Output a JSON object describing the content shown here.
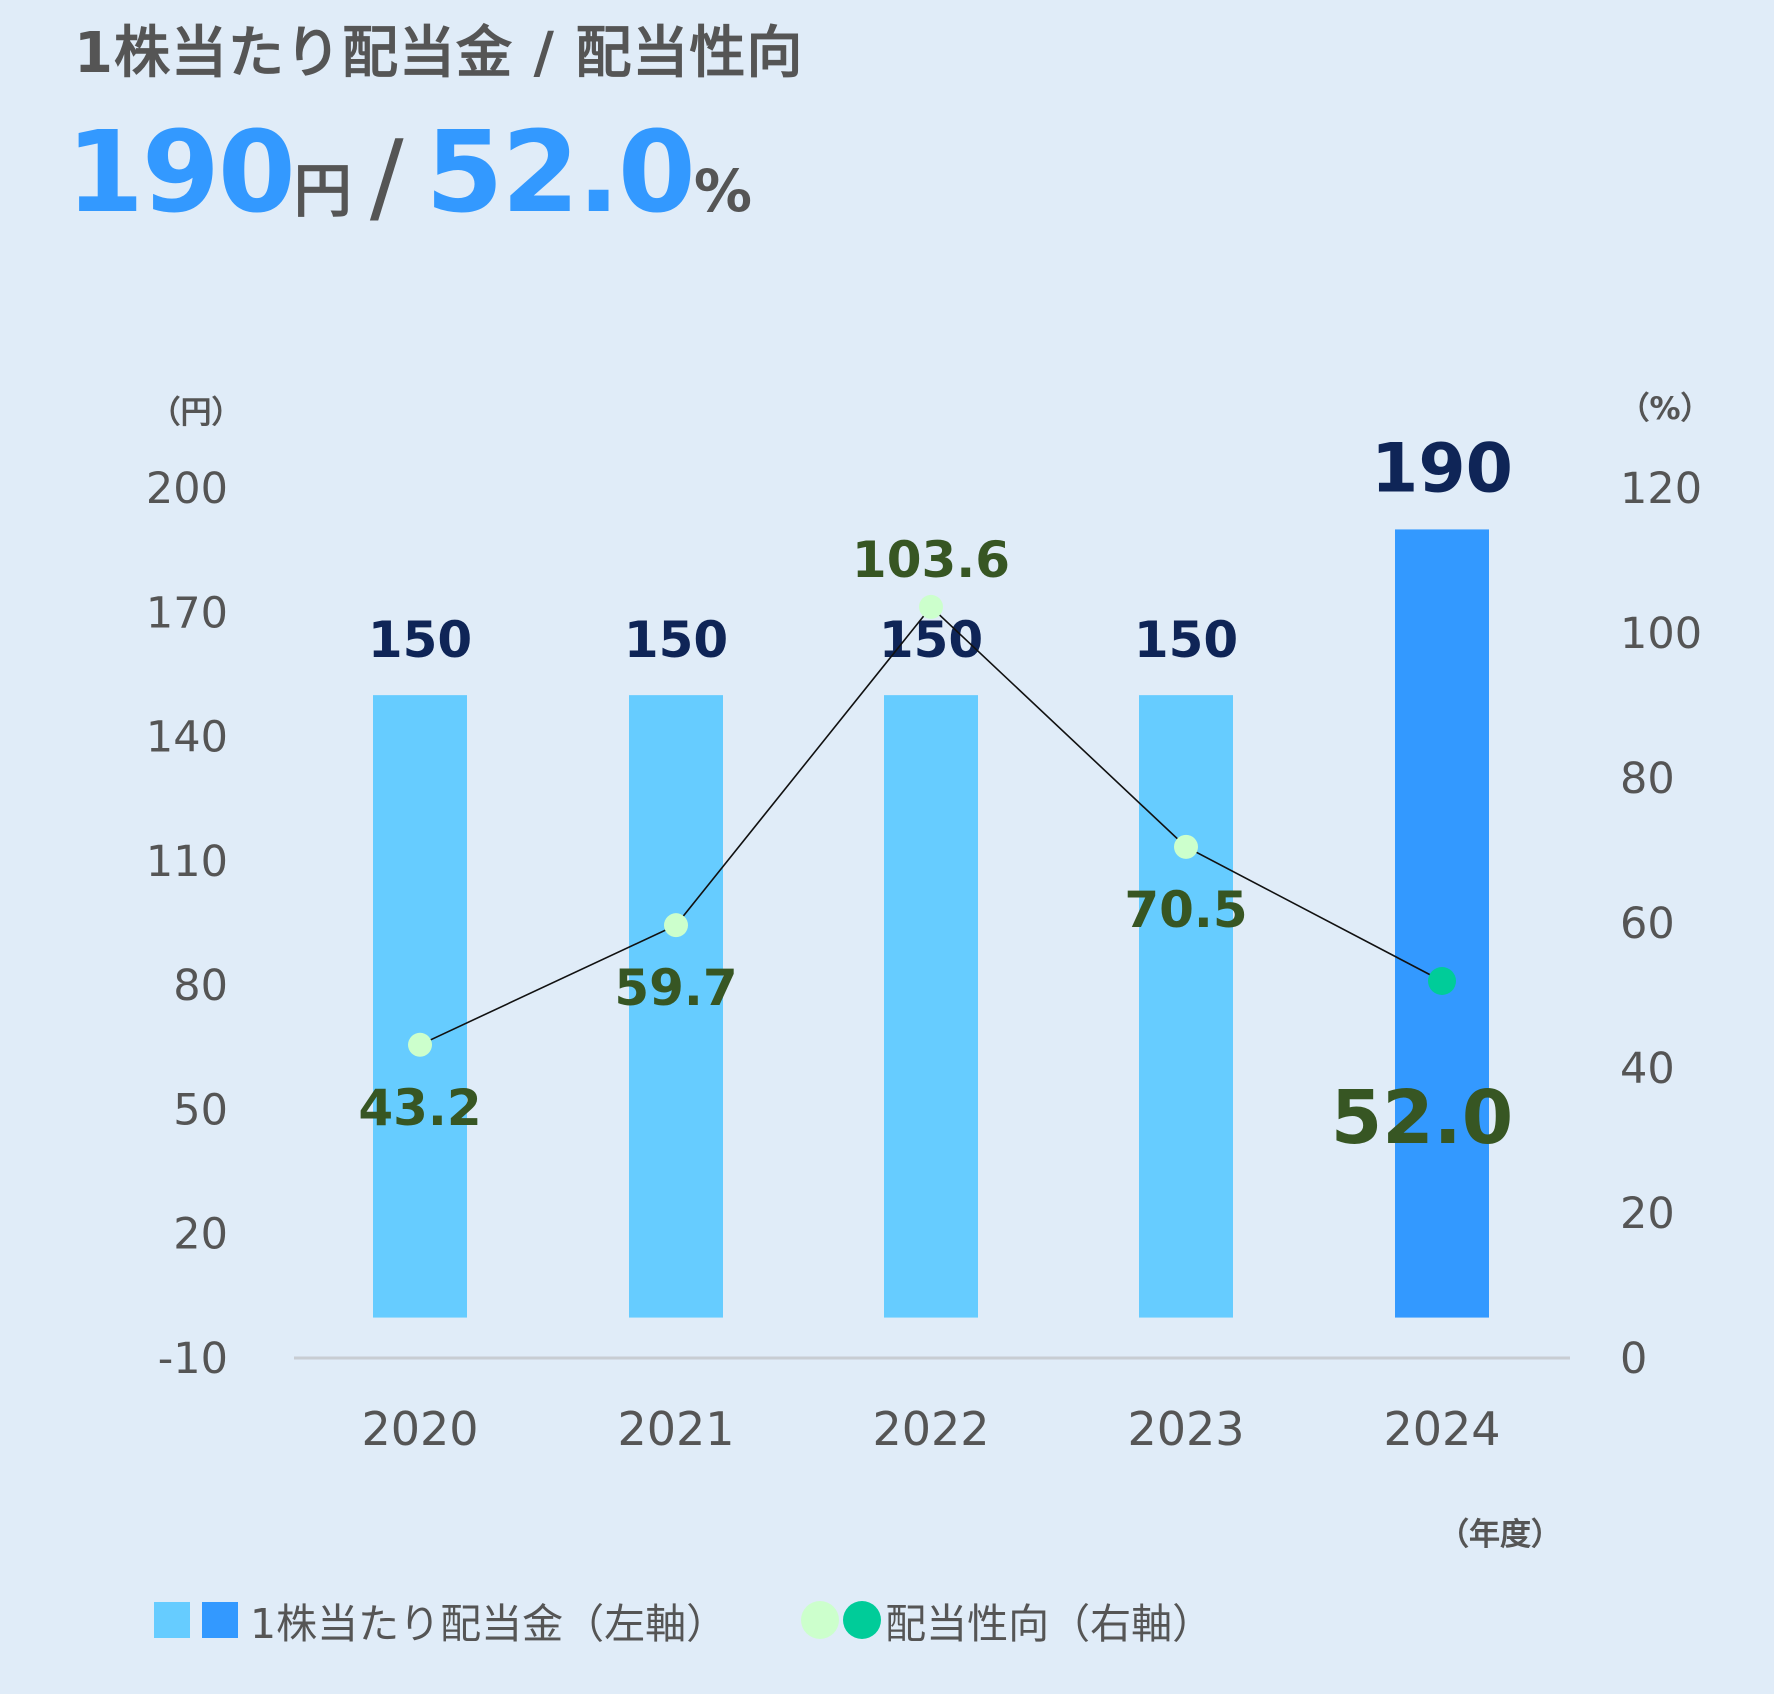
{
  "title": "1株当たり配当金 / 配当性向",
  "headline": {
    "dividend_value": "190",
    "dividend_unit": "円",
    "separator": "/",
    "payout_value": "52.0",
    "payout_unit": "%"
  },
  "colors": {
    "background": "#E0ECF8",
    "bar_past": "#66CCFF",
    "bar_current": "#3399FF",
    "dot_past": "#CCFFCC",
    "dot_current": "#00CC99",
    "bar_label": "#0F2557",
    "line_label": "#375623",
    "axis_text": "#555555"
  },
  "chart_data": {
    "type": "bar",
    "categories": [
      "2020",
      "2021",
      "2022",
      "2023",
      "2024"
    ],
    "series": [
      {
        "name": "1株当たり配当金（左軸）",
        "axis": "left",
        "type": "bar",
        "values": [
          150,
          150,
          150,
          150,
          190
        ],
        "labels": [
          "150",
          "150",
          "150",
          "150",
          "190"
        ]
      },
      {
        "name": "配当性向（右軸）",
        "axis": "right",
        "type": "line",
        "values": [
          43.2,
          59.7,
          103.6,
          70.5,
          52.0
        ],
        "labels": [
          "43.2",
          "59.7",
          "103.6",
          "70.5",
          "52.0"
        ]
      }
    ],
    "left_axis": {
      "unit_label": "（円）",
      "ylim": [
        -10,
        200
      ],
      "ticks": [
        "200",
        "170",
        "140",
        "110",
        "80",
        "50",
        "20",
        "-10"
      ],
      "tick_values": [
        200,
        170,
        140,
        110,
        80,
        50,
        20,
        -10
      ]
    },
    "right_axis": {
      "unit_label": "（%）",
      "ylim": [
        0,
        120
      ],
      "ticks": [
        "120",
        "100",
        "80",
        "60",
        "40",
        "20",
        "0"
      ],
      "tick_values": [
        120,
        100,
        80,
        60,
        40,
        20,
        0
      ]
    },
    "x_axis": {
      "unit_label": "（年度）"
    },
    "legend": {
      "position": "bottom",
      "bar_label": "1株当たり配当金（左軸）",
      "line_label": "配当性向（右軸）"
    },
    "grid": false
  }
}
